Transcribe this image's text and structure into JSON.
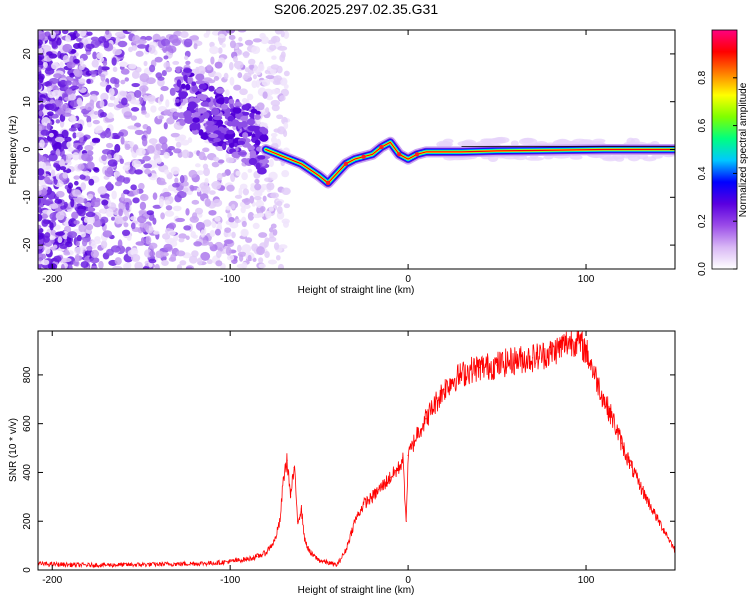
{
  "title": "S206.2025.297.02.35.G31",
  "chart_data": [
    {
      "type": "heatmap",
      "name": "spectrogram",
      "xlabel": "Height of straight line (km)",
      "ylabel": "Frequency (Hz)",
      "xlim": [
        -208,
        150
      ],
      "ylim": [
        -25,
        25
      ],
      "xticks": [
        -200,
        -100,
        0,
        100
      ],
      "yticks": [
        -20,
        -10,
        0,
        10,
        20
      ],
      "colorbar": {
        "label": "Normalized spectral amplitude",
        "range": [
          0,
          1
        ],
        "ticks": [
          "0.0",
          "0.2",
          "0.4",
          "0.6",
          "0.8"
        ],
        "colors": [
          "#ffffff",
          "#d9b8f5",
          "#9b4ce8",
          "#5a00e0",
          "#0000ff",
          "#00c8ff",
          "#00ff80",
          "#7fff00",
          "#ffff00",
          "#ff8000",
          "#ff0000",
          "#ff0080"
        ]
      },
      "ridge": {
        "x": [
          -80,
          -70,
          -60,
          -50,
          -45,
          -40,
          -35,
          -30,
          -25,
          -20,
          -15,
          -10,
          -5,
          0,
          5,
          10,
          20,
          30,
          50,
          70,
          90,
          110,
          130,
          150
        ],
        "y": [
          0,
          -1.5,
          -3,
          -5.5,
          -7,
          -5,
          -3,
          -2,
          -1.5,
          -1,
          0.5,
          1.5,
          -1,
          -2,
          -1,
          -0.5,
          -0.5,
          -0.5,
          -0.3,
          -0.2,
          -0.1,
          0,
          0,
          0
        ]
      }
    },
    {
      "type": "line",
      "name": "snr",
      "xlabel": "Height of straight line (km)",
      "ylabel": "SNR (10 * v/v)",
      "xlim": [
        -208,
        150
      ],
      "ylim": [
        0,
        980
      ],
      "xticks": [
        -200,
        -100,
        0,
        100
      ],
      "yticks": [
        0,
        200,
        400,
        600,
        800
      ],
      "color": "#ff0000",
      "x": [
        -208,
        -180,
        -150,
        -130,
        -110,
        -100,
        -90,
        -85,
        -80,
        -75,
        -72,
        -70,
        -68,
        -66,
        -64,
        -62,
        -60,
        -58,
        -55,
        -50,
        -45,
        -40,
        -35,
        -30,
        -25,
        -20,
        -15,
        -10,
        -5,
        -3,
        -1,
        0,
        2,
        5,
        10,
        15,
        20,
        25,
        30,
        35,
        40,
        50,
        60,
        70,
        80,
        85,
        90,
        95,
        100,
        105,
        110,
        115,
        120,
        125,
        130,
        135,
        140,
        145,
        150
      ],
      "y": [
        25,
        20,
        22,
        25,
        28,
        35,
        45,
        55,
        70,
        120,
        200,
        380,
        450,
        300,
        420,
        200,
        250,
        120,
        70,
        40,
        30,
        20,
        80,
        200,
        270,
        300,
        340,
        380,
        420,
        460,
        200,
        470,
        500,
        560,
        620,
        680,
        740,
        780,
        800,
        820,
        830,
        840,
        860,
        870,
        890,
        910,
        935,
        940,
        900,
        800,
        700,
        620,
        520,
        430,
        350,
        280,
        210,
        150,
        80
      ]
    }
  ]
}
